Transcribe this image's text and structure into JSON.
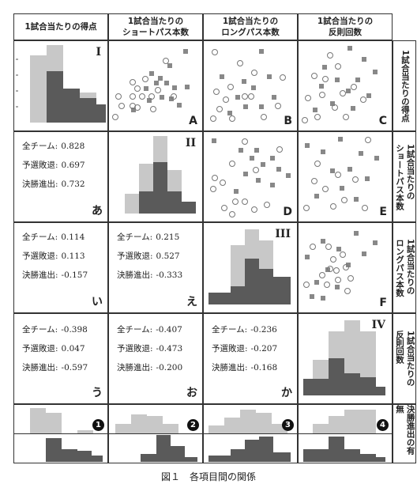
{
  "headers": {
    "col": [
      "1試合当たりの得点",
      "1試合当たりの\nショートパス本数",
      "1試合当たりの\nロングパス本数",
      "1試合当たりの\n反則回数"
    ],
    "row": [
      "1試合当たりの得点",
      "1試合当たりの\nショートパス本数",
      "1試合当たりの\nロングパス本数",
      "1試合当たりの\n反則回数",
      "決勝進出の有無"
    ]
  },
  "diag_labels": [
    "I",
    "II",
    "III",
    "IV"
  ],
  "scatter_labels": {
    "A": "A",
    "B": "B",
    "C": "C",
    "D": "D",
    "E": "E",
    "F": "F"
  },
  "corr_panels": [
    {
      "label": "あ",
      "all": "0.828",
      "pre": "0.697",
      "fin": "0.732"
    },
    {
      "label": "い",
      "all": "0.114",
      "pre": "0.113",
      "fin": "-0.157"
    },
    {
      "label": "え",
      "all": "0.215",
      "pre": "0.527",
      "fin": "-0.333"
    },
    {
      "label": "う",
      "all": "-0.398",
      "pre": "0.047",
      "fin": "-0.597"
    },
    {
      "label": "お",
      "all": "-0.407",
      "pre": "-0.473",
      "fin": "-0.200"
    },
    {
      "label": "か",
      "all": "-0.236",
      "pre": "-0.207",
      "fin": "-0.168"
    }
  ],
  "corr_keys": {
    "all": "全チーム:",
    "pre": "予選敗退:",
    "fin": "決勝進出:"
  },
  "badges": [
    "1",
    "2",
    "3",
    "4"
  ],
  "caption": "図１　各項目間の関係",
  "colors": {
    "light": "#c8c8c8",
    "dark": "#5a5a5a",
    "marker": "#888888"
  }
}
